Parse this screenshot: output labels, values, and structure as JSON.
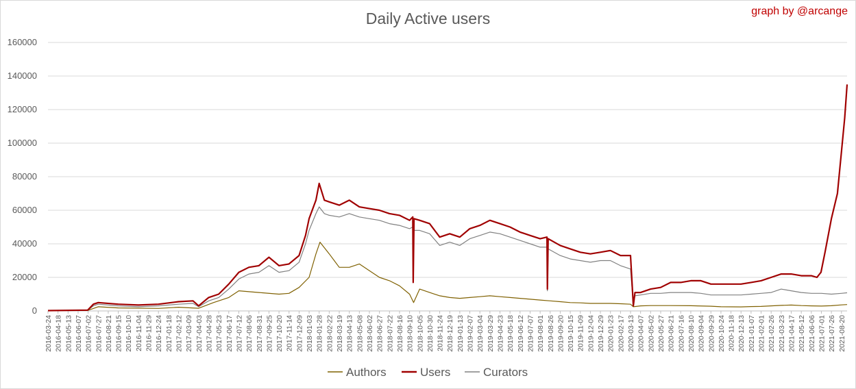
{
  "title": "Daily Active users",
  "credit": "graph by @arcange",
  "chart_data": {
    "type": "line",
    "title": "Daily Active users",
    "xlabel": "",
    "ylabel": "",
    "ylim": [
      0,
      160000
    ],
    "yticks": [
      0,
      20000,
      40000,
      60000,
      80000,
      100000,
      120000,
      140000,
      160000
    ],
    "grid": "horizontal",
    "legend": "bottom",
    "x_start": "2016-03-24",
    "x_end": "2021-09-03",
    "xticks": [
      "2016-03-24",
      "2016-04-18",
      "2016-05-13",
      "2016-06-07",
      "2016-07-02",
      "2016-07-27",
      "2016-08-21",
      "2016-09-15",
      "2016-10-10",
      "2016-11-04",
      "2016-11-29",
      "2016-12-24",
      "2017-01-18",
      "2017-02-12",
      "2017-03-09",
      "2017-04-03",
      "2017-04-28",
      "2017-05-23",
      "2017-06-17",
      "2017-07-12",
      "2017-08-06",
      "2017-08-31",
      "2017-09-25",
      "2017-10-20",
      "2017-11-14",
      "2017-12-09",
      "2018-01-03",
      "2018-01-28",
      "2018-02-22",
      "2018-03-19",
      "2018-04-13",
      "2018-05-08",
      "2018-06-02",
      "2018-06-27",
      "2018-07-22",
      "2018-08-16",
      "2018-09-10",
      "2018-10-05",
      "2018-10-30",
      "2018-11-24",
      "2018-12-19",
      "2019-01-13",
      "2019-02-07",
      "2019-03-04",
      "2019-03-29",
      "2019-04-23",
      "2019-05-18",
      "2019-06-12",
      "2019-07-07",
      "2019-08-01",
      "2019-08-26",
      "2019-09-20",
      "2019-10-15",
      "2019-11-09",
      "2019-12-04",
      "2019-12-29",
      "2020-01-23",
      "2020-02-17",
      "2020-03-13",
      "2020-04-07",
      "2020-05-02",
      "2020-05-27",
      "2020-06-21",
      "2020-07-16",
      "2020-08-10",
      "2020-09-04",
      "2020-09-29",
      "2020-10-24",
      "2020-11-18",
      "2020-12-13",
      "2021-01-07",
      "2021-02-01",
      "2021-02-26",
      "2021-03-23",
      "2021-04-17",
      "2021-05-12",
      "2021-06-06",
      "2021-07-01",
      "2021-07-26",
      "2021-08-20"
    ],
    "series": [
      {
        "name": "Authors",
        "color": "#7f6000",
        "points": [
          [
            "2016-03-24",
            200
          ],
          [
            "2016-07-01",
            300
          ],
          [
            "2016-07-27",
            2500
          ],
          [
            "2016-09-15",
            1800
          ],
          [
            "2016-12-24",
            1500
          ],
          [
            "2017-02-12",
            2200
          ],
          [
            "2017-04-03",
            1600
          ],
          [
            "2017-05-10",
            5000
          ],
          [
            "2017-06-17",
            8000
          ],
          [
            "2017-07-12",
            12000
          ],
          [
            "2017-08-31",
            11000
          ],
          [
            "2017-10-20",
            10000
          ],
          [
            "2017-11-14",
            10500
          ],
          [
            "2017-12-09",
            14000
          ],
          [
            "2018-01-03",
            20000
          ],
          [
            "2018-01-20",
            34000
          ],
          [
            "2018-01-30",
            41000
          ],
          [
            "2018-02-22",
            34000
          ],
          [
            "2018-03-19",
            26000
          ],
          [
            "2018-04-13",
            26000
          ],
          [
            "2018-05-08",
            28000
          ],
          [
            "2018-06-02",
            24000
          ],
          [
            "2018-06-27",
            20000
          ],
          [
            "2018-07-22",
            18000
          ],
          [
            "2018-08-16",
            15000
          ],
          [
            "2018-09-10",
            10000
          ],
          [
            "2018-09-20",
            5000
          ],
          [
            "2018-10-05",
            13000
          ],
          [
            "2018-10-30",
            11000
          ],
          [
            "2018-11-24",
            9000
          ],
          [
            "2018-12-19",
            8000
          ],
          [
            "2019-01-13",
            7500
          ],
          [
            "2019-02-07",
            8000
          ],
          [
            "2019-03-04",
            8500
          ],
          [
            "2019-03-29",
            9000
          ],
          [
            "2019-04-23",
            8500
          ],
          [
            "2019-05-18",
            8000
          ],
          [
            "2019-06-12",
            7500
          ],
          [
            "2019-07-07",
            7000
          ],
          [
            "2019-08-01",
            6500
          ],
          [
            "2019-08-26",
            6000
          ],
          [
            "2019-09-20",
            5500
          ],
          [
            "2019-10-15",
            5000
          ],
          [
            "2019-11-09",
            4800
          ],
          [
            "2019-12-04",
            4500
          ],
          [
            "2019-12-29",
            4500
          ],
          [
            "2020-01-23",
            4500
          ],
          [
            "2020-02-17",
            4300
          ],
          [
            "2020-03-13",
            4000
          ],
          [
            "2020-03-20",
            2500
          ],
          [
            "2020-04-07",
            3000
          ],
          [
            "2020-05-02",
            3200
          ],
          [
            "2020-06-21",
            3200
          ],
          [
            "2020-08-10",
            3100
          ],
          [
            "2020-09-29",
            2800
          ],
          [
            "2020-10-24",
            2500
          ],
          [
            "2020-12-13",
            2400
          ],
          [
            "2021-01-07",
            2600
          ],
          [
            "2021-02-01",
            2700
          ],
          [
            "2021-03-23",
            3300
          ],
          [
            "2021-04-17",
            3500
          ],
          [
            "2021-05-12",
            3200
          ],
          [
            "2021-06-06",
            3000
          ],
          [
            "2021-07-01",
            2900
          ],
          [
            "2021-07-26",
            3100
          ],
          [
            "2021-08-20",
            3600
          ],
          [
            "2021-09-03",
            3800
          ]
        ]
      },
      {
        "name": "Users",
        "color": "#a00000",
        "points": [
          [
            "2016-03-24",
            200
          ],
          [
            "2016-07-01",
            500
          ],
          [
            "2016-07-15",
            4000
          ],
          [
            "2016-07-27",
            5000
          ],
          [
            "2016-09-15",
            4000
          ],
          [
            "2016-11-04",
            3500
          ],
          [
            "2016-12-24",
            4000
          ],
          [
            "2017-02-12",
            5500
          ],
          [
            "2017-03-20",
            6000
          ],
          [
            "2017-04-03",
            3000
          ],
          [
            "2017-04-28",
            8000
          ],
          [
            "2017-05-23",
            10000
          ],
          [
            "2017-06-17",
            16000
          ],
          [
            "2017-07-12",
            23000
          ],
          [
            "2017-08-06",
            26000
          ],
          [
            "2017-08-31",
            27000
          ],
          [
            "2017-09-25",
            32000
          ],
          [
            "2017-10-20",
            27000
          ],
          [
            "2017-11-14",
            28000
          ],
          [
            "2017-12-09",
            33000
          ],
          [
            "2017-12-25",
            45000
          ],
          [
            "2018-01-03",
            55000
          ],
          [
            "2018-01-20",
            66000
          ],
          [
            "2018-01-28",
            76000
          ],
          [
            "2018-02-10",
            66000
          ],
          [
            "2018-02-22",
            65000
          ],
          [
            "2018-03-19",
            63000
          ],
          [
            "2018-04-13",
            66000
          ],
          [
            "2018-05-08",
            62000
          ],
          [
            "2018-06-02",
            61000
          ],
          [
            "2018-06-27",
            60000
          ],
          [
            "2018-07-22",
            58000
          ],
          [
            "2018-08-16",
            57000
          ],
          [
            "2018-09-10",
            54000
          ],
          [
            "2018-09-18",
            56000
          ],
          [
            "2018-09-19",
            17000
          ],
          [
            "2018-09-21",
            55000
          ],
          [
            "2018-10-05",
            54000
          ],
          [
            "2018-10-30",
            52000
          ],
          [
            "2018-11-24",
            44000
          ],
          [
            "2018-12-19",
            46000
          ],
          [
            "2019-01-13",
            44000
          ],
          [
            "2019-02-07",
            49000
          ],
          [
            "2019-03-04",
            51000
          ],
          [
            "2019-03-29",
            54000
          ],
          [
            "2019-04-23",
            52000
          ],
          [
            "2019-05-18",
            50000
          ],
          [
            "2019-06-12",
            47000
          ],
          [
            "2019-07-07",
            45000
          ],
          [
            "2019-08-01",
            43000
          ],
          [
            "2019-08-18",
            44000
          ],
          [
            "2019-08-19",
            13000
          ],
          [
            "2019-08-21",
            43000
          ],
          [
            "2019-09-20",
            39000
          ],
          [
            "2019-10-15",
            37000
          ],
          [
            "2019-11-09",
            35000
          ],
          [
            "2019-12-04",
            34000
          ],
          [
            "2019-12-29",
            35000
          ],
          [
            "2020-01-23",
            36000
          ],
          [
            "2020-02-17",
            33000
          ],
          [
            "2020-03-13",
            33000
          ],
          [
            "2020-03-20",
            3000
          ],
          [
            "2020-03-24",
            11000
          ],
          [
            "2020-04-07",
            11000
          ],
          [
            "2020-05-02",
            13000
          ],
          [
            "2020-05-27",
            14000
          ],
          [
            "2020-06-21",
            17000
          ],
          [
            "2020-07-16",
            17000
          ],
          [
            "2020-08-10",
            18000
          ],
          [
            "2020-09-04",
            18000
          ],
          [
            "2020-09-29",
            16000
          ],
          [
            "2020-10-24",
            16000
          ],
          [
            "2020-11-18",
            16000
          ],
          [
            "2020-12-13",
            16000
          ],
          [
            "2021-01-07",
            17000
          ],
          [
            "2021-02-01",
            18000
          ],
          [
            "2021-02-26",
            20000
          ],
          [
            "2021-03-23",
            22000
          ],
          [
            "2021-04-17",
            22000
          ],
          [
            "2021-05-12",
            21000
          ],
          [
            "2021-06-06",
            21000
          ],
          [
            "2021-06-20",
            20000
          ],
          [
            "2021-06-30",
            23000
          ],
          [
            "2021-07-10",
            35000
          ],
          [
            "2021-07-26",
            55000
          ],
          [
            "2021-08-10",
            70000
          ],
          [
            "2021-08-20",
            95000
          ],
          [
            "2021-08-28",
            115000
          ],
          [
            "2021-09-03",
            135000
          ]
        ]
      },
      {
        "name": "Curators",
        "color": "#808080",
        "points": [
          [
            "2016-03-24",
            200
          ],
          [
            "2016-07-01",
            400
          ],
          [
            "2016-07-15",
            3000
          ],
          [
            "2016-07-27",
            4000
          ],
          [
            "2016-09-15",
            3000
          ],
          [
            "2016-11-04",
            2500
          ],
          [
            "2016-12-24",
            3000
          ],
          [
            "2017-02-12",
            4000
          ],
          [
            "2017-03-20",
            4500
          ],
          [
            "2017-04-03",
            2500
          ],
          [
            "2017-04-28",
            6000
          ],
          [
            "2017-05-23",
            8000
          ],
          [
            "2017-06-17",
            13000
          ],
          [
            "2017-07-12",
            19000
          ],
          [
            "2017-08-06",
            22000
          ],
          [
            "2017-08-31",
            23000
          ],
          [
            "2017-09-25",
            27000
          ],
          [
            "2017-10-20",
            23000
          ],
          [
            "2017-11-14",
            24000
          ],
          [
            "2017-12-09",
            29000
          ],
          [
            "2017-12-25",
            40000
          ],
          [
            "2018-01-03",
            48000
          ],
          [
            "2018-01-20",
            58000
          ],
          [
            "2018-01-28",
            62000
          ],
          [
            "2018-02-10",
            58000
          ],
          [
            "2018-02-22",
            57000
          ],
          [
            "2018-03-19",
            56000
          ],
          [
            "2018-04-13",
            58000
          ],
          [
            "2018-05-08",
            56000
          ],
          [
            "2018-06-02",
            55000
          ],
          [
            "2018-06-27",
            54000
          ],
          [
            "2018-07-22",
            52000
          ],
          [
            "2018-08-16",
            51000
          ],
          [
            "2018-09-10",
            49000
          ],
          [
            "2018-09-18",
            50000
          ],
          [
            "2018-09-19",
            19000
          ],
          [
            "2018-09-21",
            48000
          ],
          [
            "2018-10-05",
            48000
          ],
          [
            "2018-10-30",
            46000
          ],
          [
            "2018-11-24",
            39000
          ],
          [
            "2018-12-19",
            41000
          ],
          [
            "2019-01-13",
            39000
          ],
          [
            "2019-02-07",
            43000
          ],
          [
            "2019-03-04",
            45000
          ],
          [
            "2019-03-29",
            47000
          ],
          [
            "2019-04-23",
            46000
          ],
          [
            "2019-05-18",
            44000
          ],
          [
            "2019-06-12",
            42000
          ],
          [
            "2019-07-07",
            40000
          ],
          [
            "2019-08-01",
            38000
          ],
          [
            "2019-08-18",
            38000
          ],
          [
            "2019-08-19",
            12000
          ],
          [
            "2019-08-21",
            37000
          ],
          [
            "2019-09-20",
            33000
          ],
          [
            "2019-10-15",
            31000
          ],
          [
            "2019-11-09",
            30000
          ],
          [
            "2019-12-04",
            29000
          ],
          [
            "2019-12-29",
            30000
          ],
          [
            "2020-01-23",
            30000
          ],
          [
            "2020-02-17",
            27000
          ],
          [
            "2020-03-13",
            25000
          ],
          [
            "2020-03-20",
            3500
          ],
          [
            "2020-03-24",
            9000
          ],
          [
            "2020-04-07",
            9500
          ],
          [
            "2020-05-02",
            10500
          ],
          [
            "2020-05-27",
            10500
          ],
          [
            "2020-06-21",
            11000
          ],
          [
            "2020-07-16",
            11000
          ],
          [
            "2020-08-10",
            11000
          ],
          [
            "2020-09-04",
            10500
          ],
          [
            "2020-09-29",
            9500
          ],
          [
            "2020-10-24",
            9500
          ],
          [
            "2020-11-18",
            9500
          ],
          [
            "2020-12-13",
            9500
          ],
          [
            "2021-01-07",
            10000
          ],
          [
            "2021-02-01",
            10500
          ],
          [
            "2021-02-26",
            11000
          ],
          [
            "2021-03-23",
            13000
          ],
          [
            "2021-04-17",
            12000
          ],
          [
            "2021-05-12",
            11000
          ],
          [
            "2021-06-06",
            10500
          ],
          [
            "2021-07-01",
            10500
          ],
          [
            "2021-07-26",
            10000
          ],
          [
            "2021-08-20",
            10500
          ],
          [
            "2021-09-03",
            10800
          ]
        ]
      }
    ]
  }
}
